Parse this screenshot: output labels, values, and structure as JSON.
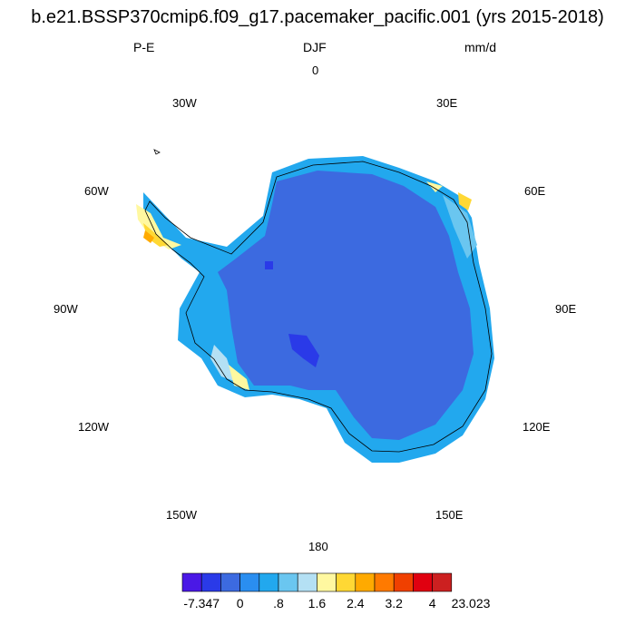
{
  "title": "b.e21.BSSP370cmip6.f09_g17.pacemaker_pacific.001 (yrs 2015-2018)",
  "left_string": "P-E",
  "center_string": "DJF",
  "right_string": "mm/d",
  "lon_labels": {
    "n0": "0",
    "e30": "30E",
    "e60": "60E",
    "e90": "90E",
    "e120": "120E",
    "e150": "150E",
    "s180": "180",
    "w150": "150W",
    "w120": "120W",
    "w90": "90W",
    "w60": "60W",
    "w30": "30W"
  },
  "colorbar": {
    "colors": [
      "#4a18e6",
      "#2a3ae8",
      "#3c6ae0",
      "#2a8ef0",
      "#22a8ee",
      "#6ac6f0",
      "#b4e0f4",
      "#fff8a0",
      "#ffd834",
      "#ffaa00",
      "#ff7a00",
      "#f04000",
      "#e00010",
      "#cc2020"
    ],
    "tick_labels": [
      "-7.347",
      "0",
      ".8",
      "1.6",
      "2.4",
      "3.2",
      "4",
      "23.023"
    ]
  },
  "map": {
    "projection": "south polar stereographic",
    "ice_interior_color": "#3c6ae0",
    "coast_color": "#2a8ef0",
    "peninsula_color": "#ffd834"
  }
}
